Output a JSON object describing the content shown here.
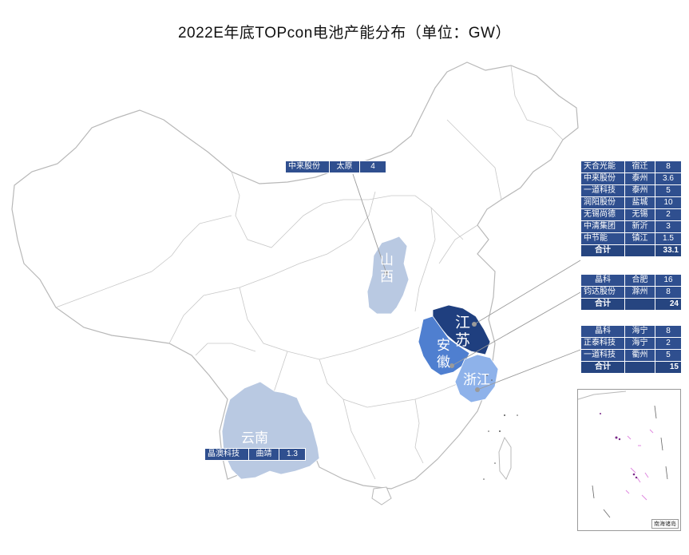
{
  "title": "2022E年底TOPcon电池产能分布（单位：GW）",
  "colors": {
    "table_bg": "#2f4f8f",
    "jiangsu": "#1f3f7f",
    "anhui": "#4f7fd0",
    "zhejiang": "#8eb2ea",
    "shanxi_yunnan": "#b9c9e2",
    "border": "#bdbdbd"
  },
  "provinces": {
    "shanxi": "山西",
    "jiangsu": "江苏",
    "anhui": "安徽",
    "zhejiang": "浙江",
    "yunnan": "云南"
  },
  "tables": {
    "shanxi": {
      "rows": [
        {
          "company": "中来股份",
          "city": "太原",
          "capacity": "4"
        }
      ]
    },
    "jiangsu": {
      "rows": [
        {
          "company": "天合光能",
          "city": "宿迁",
          "capacity": "8"
        },
        {
          "company": "中来股份",
          "city": "泰州",
          "capacity": "3.6"
        },
        {
          "company": "一道科技",
          "city": "泰州",
          "capacity": "5"
        },
        {
          "company": "润阳股份",
          "city": "盐城",
          "capacity": "10"
        },
        {
          "company": "无锡尚德",
          "city": "无锡",
          "capacity": "2"
        },
        {
          "company": "中清集团",
          "city": "新沂",
          "capacity": "3"
        },
        {
          "company": "中节能",
          "city": "镇江",
          "capacity": "1.5"
        }
      ],
      "total_label": "合计",
      "total": "33.1"
    },
    "anhui": {
      "rows": [
        {
          "company": "晶科",
          "city": "合肥",
          "capacity": "16"
        },
        {
          "company": "钧达股份",
          "city": "滁州",
          "capacity": "8"
        }
      ],
      "total_label": "合计",
      "total": "24"
    },
    "zhejiang": {
      "rows": [
        {
          "company": "晶科",
          "city": "海宁",
          "capacity": "8"
        },
        {
          "company": "正泰科技",
          "city": "海宁",
          "capacity": "2"
        },
        {
          "company": "一道科技",
          "city": "衢州",
          "capacity": "5"
        }
      ],
      "total_label": "合计",
      "total": "15"
    },
    "yunnan": {
      "rows": [
        {
          "company": "晶澳科技",
          "city": "曲靖",
          "capacity": "1.3"
        }
      ]
    }
  },
  "inset_label": "南海诸岛"
}
